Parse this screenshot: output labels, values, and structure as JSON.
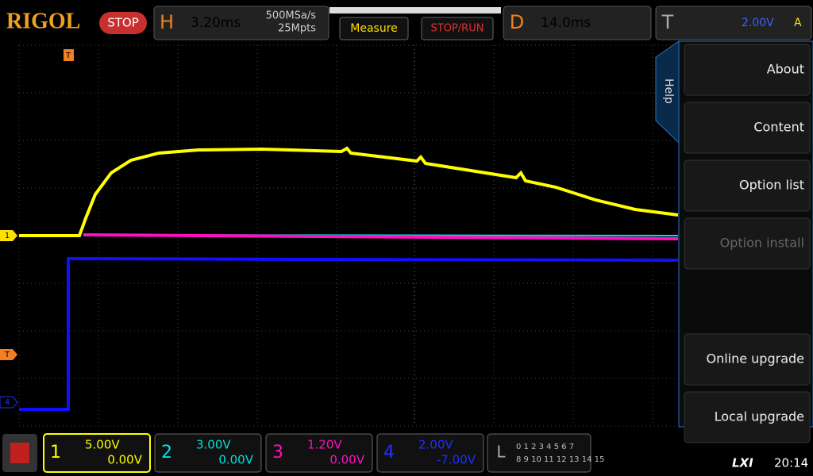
{
  "top_bar": {
    "brand": "RIGOL",
    "run_state": "STOP",
    "h_label": "H",
    "h_scale": "3.20ms",
    "sample_rate": "500MSa/s",
    "memory_depth": "25Mpts",
    "measure": "Measure",
    "stop_run": "STOP/RUN",
    "d_label": "D",
    "delay": "14.0ms",
    "t_label": "T",
    "trigger_level": "2.00V",
    "trigger_mode": "A"
  },
  "markers": {
    "trigger_top": "T",
    "ch1": "1",
    "trigger_left": "T",
    "ch4": "4"
  },
  "help_tab": "Help",
  "menu": [
    "About",
    "Content",
    "Option list",
    "Option install",
    "Online upgrade",
    "Local upgrade"
  ],
  "channels": [
    {
      "number": "1",
      "scale": "5.00V",
      "offset": "0.00V"
    },
    {
      "number": "2",
      "scale": "3.00V",
      "offset": "0.00V"
    },
    {
      "number": "3",
      "scale": "1.20V",
      "offset": "0.00V"
    },
    {
      "number": "4",
      "scale": "2.00V",
      "offset": "-7.00V"
    }
  ],
  "logic": {
    "label": "L",
    "row1": "0 1 2 3 4 5 6 7",
    "row2": "8 9 10 11 12 13 14 15"
  },
  "status": {
    "lxi": "LXI",
    "time": "20:14"
  }
}
